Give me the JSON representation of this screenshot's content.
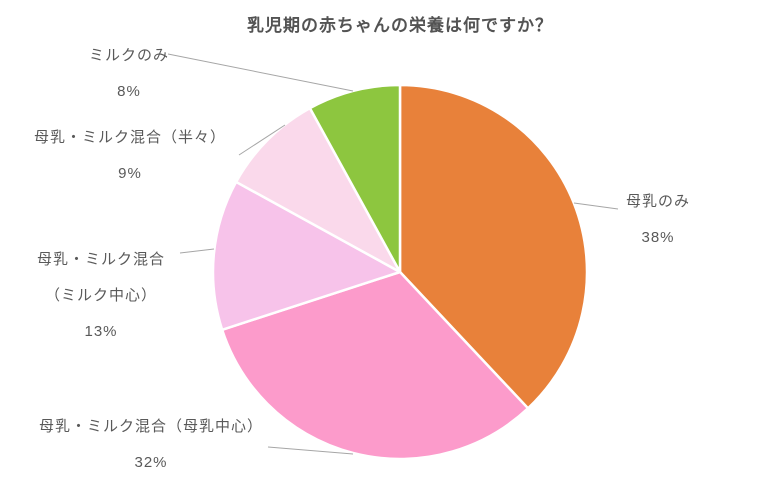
{
  "chart_data": {
    "type": "pie",
    "title": "乳児期の赤ちゃんの栄養は何ですか？",
    "unit": "%",
    "start_angle_deg": 0,
    "direction": "clockwise",
    "legend": "none (callout labels with leader lines)",
    "categories": [
      "母乳のみ",
      "母乳・ミルク混合（母乳中心）",
      "母乳・ミルク混合（ミルク中心）",
      "母乳・ミルク混合（半々）",
      "ミルクのみ"
    ],
    "values": [
      38,
      32,
      13,
      9,
      8
    ],
    "colors": [
      "#E8813A",
      "#FC9BCB",
      "#F7C3EA",
      "#FAD9EB",
      "#8DC63F"
    ],
    "slice_border_color": "#FFFFFF",
    "leader_line_color": "#A6A6A6",
    "label_color": "#595959",
    "title_color": "#535353",
    "callouts": [
      {
        "lines": [
          "母乳のみ",
          "38%"
        ]
      },
      {
        "lines": [
          "母乳・ミルク混合（母乳中心）",
          "32%"
        ]
      },
      {
        "lines": [
          "母乳・ミルク混合",
          "（ミルク中心）",
          "13%"
        ]
      },
      {
        "lines": [
          "母乳・ミルク混合（半々）",
          "9%"
        ]
      },
      {
        "lines": [
          "ミルクのみ",
          "8%"
        ]
      }
    ]
  }
}
